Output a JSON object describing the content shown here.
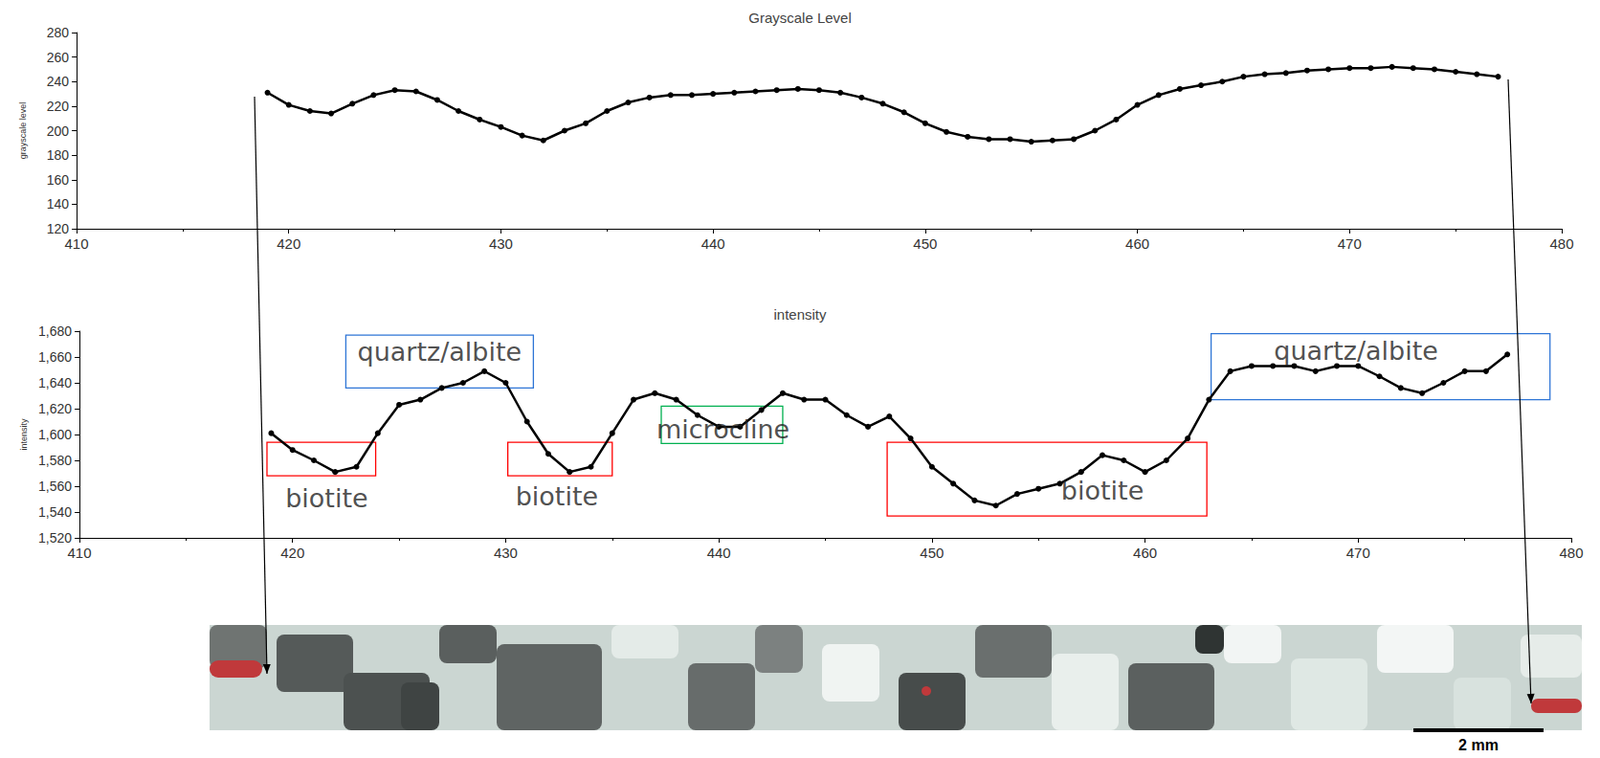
{
  "chart_data": [
    {
      "type": "line",
      "title": "Grayscale Level",
      "y_label": "grayscale level",
      "color": "#000000",
      "marker": "circle",
      "x": [
        419,
        420,
        421,
        422,
        423,
        424,
        425,
        426,
        427,
        428,
        429,
        430,
        431,
        432,
        433,
        434,
        435,
        436,
        437,
        438,
        439,
        440,
        441,
        442,
        443,
        444,
        445,
        446,
        447,
        448,
        449,
        450,
        451,
        452,
        453,
        454,
        455,
        456,
        457,
        458,
        459,
        460,
        461,
        462,
        463,
        464,
        465,
        466,
        467,
        468,
        469,
        470,
        471,
        472,
        473,
        474,
        475,
        476,
        477
      ],
      "values": [
        231,
        221,
        216,
        214,
        222,
        229,
        233,
        232,
        225,
        216,
        209,
        203,
        196,
        192,
        200,
        206,
        216,
        223,
        227,
        229,
        229,
        230,
        231,
        232,
        233,
        234,
        233,
        231,
        227,
        222,
        215,
        206,
        199,
        195,
        193,
        193,
        191,
        192,
        193,
        200,
        209,
        221,
        229,
        234,
        237,
        240,
        244,
        246,
        247,
        249,
        250,
        251,
        251,
        252,
        251,
        250,
        248,
        246,
        244
      ],
      "xlim": [
        410,
        480
      ],
      "xticks": [
        410,
        420,
        430,
        440,
        450,
        460,
        470,
        480
      ],
      "ylim": [
        120,
        280
      ],
      "yticks": [
        120,
        140,
        160,
        180,
        200,
        220,
        240,
        260,
        280
      ],
      "grid": false
    },
    {
      "type": "line",
      "title": "intensity",
      "y_label": "intensity",
      "color": "#000000",
      "marker": "circle",
      "x": [
        419,
        420,
        421,
        422,
        423,
        424,
        425,
        426,
        427,
        428,
        429,
        430,
        431,
        432,
        433,
        434,
        435,
        436,
        437,
        438,
        439,
        440,
        441,
        442,
        443,
        444,
        445,
        446,
        447,
        448,
        449,
        450,
        451,
        452,
        453,
        454,
        455,
        456,
        457,
        458,
        459,
        460,
        461,
        462,
        463,
        464,
        465,
        466,
        467,
        468,
        469,
        470,
        471,
        472,
        473,
        474,
        475,
        476,
        477
      ],
      "values": [
        1601,
        1588,
        1580,
        1571,
        1575,
        1601,
        1623,
        1627,
        1636,
        1640,
        1649,
        1640,
        1610,
        1585,
        1571,
        1575,
        1601,
        1627,
        1632,
        1627,
        1615,
        1606,
        1606,
        1619,
        1632,
        1627,
        1627,
        1615,
        1606,
        1614,
        1597,
        1575,
        1562,
        1549,
        1545,
        1554,
        1558,
        1562,
        1571,
        1584,
        1580,
        1571,
        1580,
        1597,
        1627,
        1649,
        1653,
        1653,
        1653,
        1649,
        1653,
        1653,
        1645,
        1636,
        1632,
        1640,
        1649,
        1649,
        1662
      ],
      "xlim": [
        410,
        480
      ],
      "xticks": [
        410,
        420,
        430,
        440,
        450,
        460,
        470,
        480
      ],
      "ylim": [
        1520,
        1680
      ],
      "yticks": [
        1520,
        1540,
        1560,
        1580,
        1600,
        1620,
        1640,
        1660,
        1680
      ],
      "grid": false,
      "annotations": [
        {
          "text": "quartz/albite",
          "color": "#2e75d6",
          "box_x": [
            422.5,
            431.3
          ],
          "box_y": [
            1636,
            1677
          ],
          "label_x": 426.9,
          "label_y": 1664
        },
        {
          "text": "biotite",
          "color": "#ff0000",
          "box_x": [
            418.8,
            423.9
          ],
          "box_y": [
            1568,
            1594
          ],
          "label_x": 421.6,
          "label_y": 1551
        },
        {
          "text": "biotite",
          "color": "#ff0000",
          "box_x": [
            430.1,
            435.0
          ],
          "box_y": [
            1568,
            1594
          ],
          "label_x": 432.4,
          "label_y": 1552
        },
        {
          "text": "microcline",
          "color": "#00b050",
          "box_x": [
            437.3,
            443.0
          ],
          "box_y": [
            1593,
            1622
          ],
          "label_x": 440.2,
          "label_y": 1604
        },
        {
          "text": "biotite",
          "color": "#ff0000",
          "box_x": [
            447.9,
            462.9
          ],
          "box_y": [
            1537,
            1594
          ],
          "label_x": 458.0,
          "label_y": 1557
        },
        {
          "text": "quartz/albite",
          "color": "#2e75d6",
          "box_x": [
            463.1,
            479.0
          ],
          "box_y": [
            1627,
            1678
          ],
          "label_x": 469.9,
          "label_y": 1665
        }
      ]
    }
  ],
  "image_strip": {
    "scale_label": "2 mm"
  }
}
